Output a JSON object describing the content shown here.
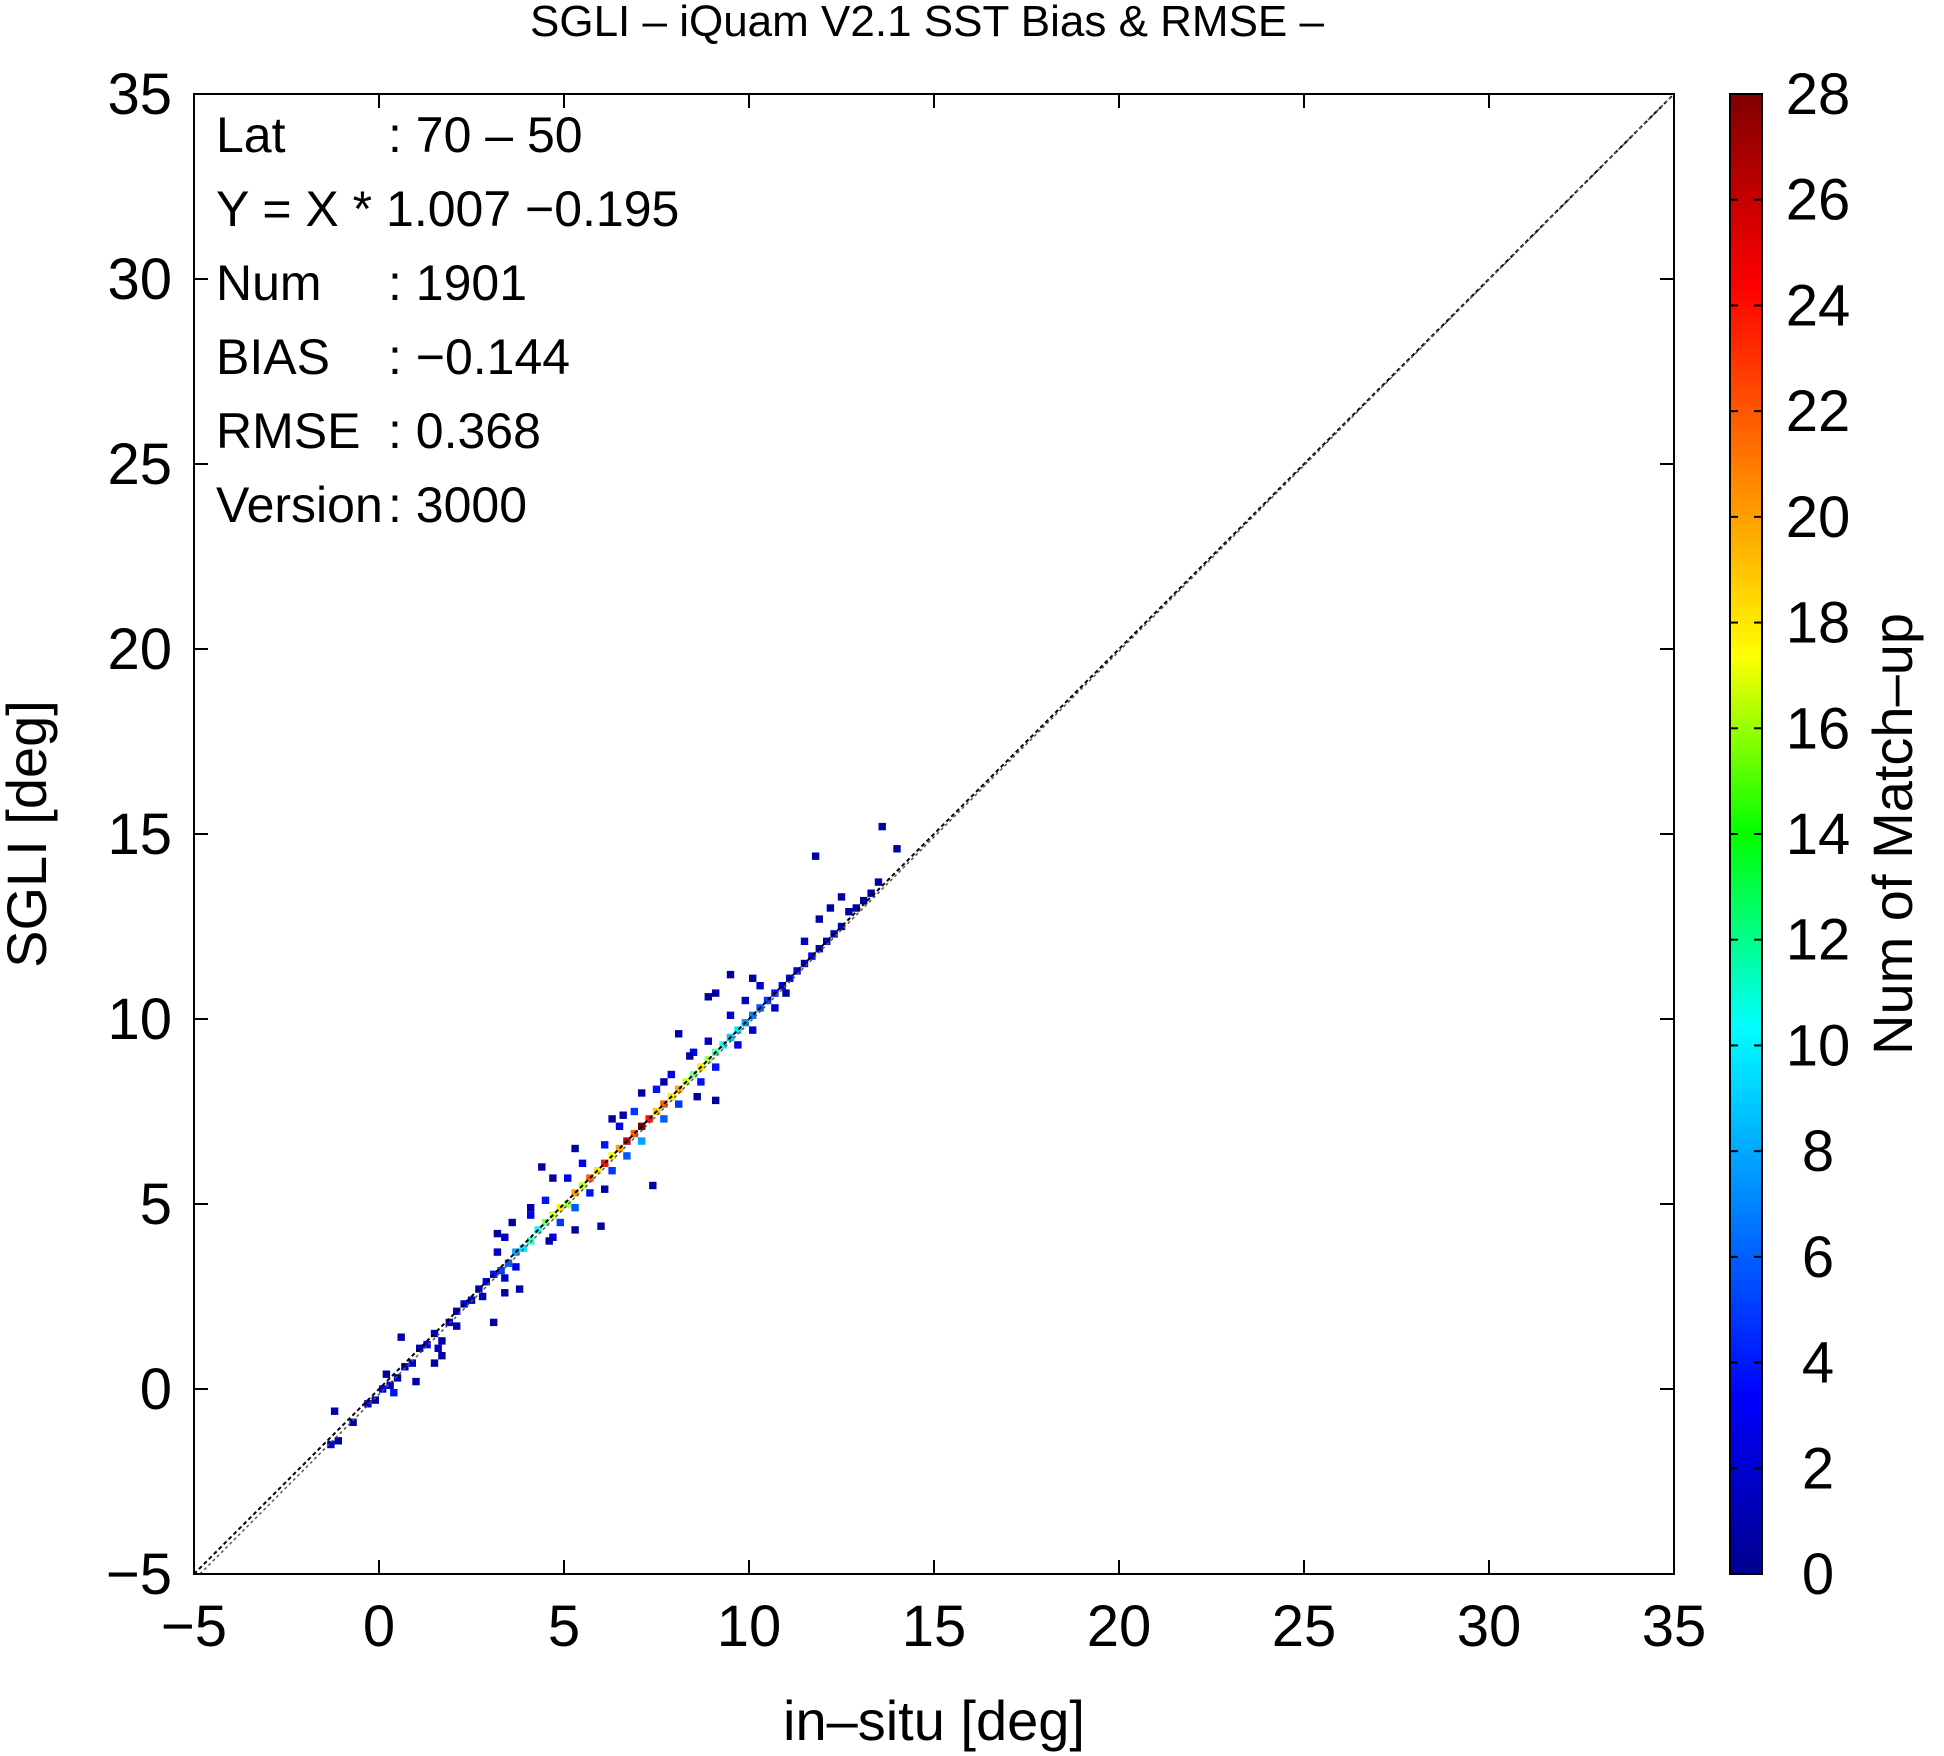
{
  "chart_data": {
    "type": "heatmap",
    "title": "SGLI – iQuam V2.1 SST Bias & RMSE  –",
    "xlabel": "in–situ [deg]",
    "ylabel": "SGLI [deg]",
    "xlim": [
      -5,
      35
    ],
    "ylim": [
      -5,
      35
    ],
    "x_ticks": [
      "−5",
      "0",
      "5",
      "10",
      "15",
      "20",
      "25",
      "30",
      "35"
    ],
    "y_ticks": [
      "−5",
      "0",
      "5",
      "10",
      "15",
      "20",
      "25",
      "30",
      "35"
    ],
    "grid": false,
    "colorbar": {
      "label": "Num of Match–up",
      "range": [
        0,
        28
      ],
      "ticks": [
        "0",
        "2",
        "4",
        "6",
        "8",
        "10",
        "12",
        "14",
        "16",
        "18",
        "20",
        "22",
        "24",
        "26",
        "28"
      ],
      "colormap": "jet"
    },
    "reference_line": {
      "type": "1:1",
      "style": "dashed"
    },
    "stats": [
      {
        "label": "Lat",
        "value": ": 70 – 50"
      },
      {
        "label": "Y = X * 1.007 −0.195",
        "value": ""
      },
      {
        "label": "Num",
        "value": ": 1901"
      },
      {
        "label": "BIAS",
        "value": ": −0.144"
      },
      {
        "label": "RMSE",
        "value": ": 0.368"
      },
      {
        "label": "Version",
        "value": ": 3000"
      }
    ],
    "bins": [
      [
        -1.4,
        -1.6,
        2
      ],
      [
        -1.2,
        -1.5,
        1
      ],
      [
        -1.3,
        -0.7,
        1
      ],
      [
        -0.8,
        -1.0,
        1
      ],
      [
        -0.4,
        -0.5,
        2
      ],
      [
        -0.2,
        -0.4,
        1
      ],
      [
        0.0,
        -0.1,
        3
      ],
      [
        0.2,
        0.0,
        2
      ],
      [
        0.4,
        0.2,
        1
      ],
      [
        0.1,
        0.3,
        1
      ],
      [
        0.3,
        -0.2,
        4
      ],
      [
        0.6,
        0.5,
        2
      ],
      [
        0.8,
        0.6,
        2
      ],
      [
        0.9,
        0.1,
        1
      ],
      [
        1.0,
        1.0,
        2
      ],
      [
        1.2,
        1.1,
        3
      ],
      [
        1.4,
        1.4,
        2
      ],
      [
        1.5,
        1.0,
        2
      ],
      [
        1.6,
        1.2,
        1
      ],
      [
        1.8,
        1.7,
        2
      ],
      [
        2.0,
        2.0,
        2
      ],
      [
        2.2,
        2.2,
        3
      ],
      [
        2.0,
        1.6,
        1
      ],
      [
        2.4,
        2.3,
        2
      ],
      [
        2.6,
        2.6,
        2
      ],
      [
        2.8,
        2.8,
        3
      ],
      [
        2.7,
        2.4,
        2
      ],
      [
        3.0,
        3.0,
        4
      ],
      [
        3.2,
        3.1,
        5
      ],
      [
        3.4,
        3.3,
        6
      ],
      [
        3.3,
        2.9,
        2
      ],
      [
        3.6,
        3.6,
        8
      ],
      [
        3.8,
        3.7,
        10
      ],
      [
        3.6,
        3.2,
        3
      ],
      [
        3.1,
        3.6,
        2
      ],
      [
        3.3,
        4.0,
        2
      ],
      [
        3.5,
        4.4,
        1
      ],
      [
        4.0,
        3.9,
        12
      ],
      [
        4.2,
        4.2,
        11
      ],
      [
        4.4,
        4.4,
        14
      ],
      [
        4.0,
        4.6,
        3
      ],
      [
        4.6,
        4.0,
        3
      ],
      [
        4.6,
        4.6,
        16
      ],
      [
        4.8,
        4.8,
        18
      ],
      [
        5.0,
        4.9,
        15
      ],
      [
        4.8,
        4.4,
        5
      ],
      [
        4.4,
        5.0,
        4
      ],
      [
        5.2,
        5.2,
        20
      ],
      [
        5.4,
        5.4,
        16
      ],
      [
        5.2,
        4.8,
        6
      ],
      [
        5.0,
        5.6,
        3
      ],
      [
        5.6,
        5.6,
        22
      ],
      [
        5.8,
        5.8,
        18
      ],
      [
        5.6,
        5.2,
        4
      ],
      [
        5.4,
        6.0,
        3
      ],
      [
        5.9,
        4.3,
        1
      ],
      [
        6.0,
        6.0,
        24
      ],
      [
        6.2,
        6.2,
        17
      ],
      [
        6.4,
        6.4,
        20
      ],
      [
        6.2,
        5.8,
        5
      ],
      [
        6.0,
        6.5,
        4
      ],
      [
        6.6,
        6.6,
        26
      ],
      [
        6.8,
        6.8,
        22
      ],
      [
        6.6,
        6.2,
        6
      ],
      [
        6.4,
        7.0,
        3
      ],
      [
        7.0,
        7.0,
        28
      ],
      [
        7.2,
        7.2,
        24
      ],
      [
        7.4,
        7.4,
        19
      ],
      [
        7.0,
        6.6,
        8
      ],
      [
        6.8,
        7.4,
        5
      ],
      [
        7.6,
        7.6,
        22
      ],
      [
        7.8,
        7.8,
        18
      ],
      [
        7.6,
        7.2,
        6
      ],
      [
        7.4,
        8.0,
        4
      ],
      [
        8.0,
        8.0,
        20
      ],
      [
        8.2,
        8.2,
        16
      ],
      [
        8.4,
        8.4,
        14
      ],
      [
        8.0,
        7.6,
        5
      ],
      [
        7.8,
        8.4,
        3
      ],
      [
        8.6,
        8.6,
        18
      ],
      [
        8.8,
        8.8,
        15
      ],
      [
        8.6,
        8.2,
        4
      ],
      [
        8.4,
        9.0,
        3
      ],
      [
        9.0,
        9.0,
        13
      ],
      [
        9.2,
        9.2,
        11
      ],
      [
        9.4,
        9.4,
        9
      ],
      [
        9.0,
        8.6,
        4
      ],
      [
        8.8,
        9.3,
        2
      ],
      [
        9.6,
        9.6,
        10
      ],
      [
        9.8,
        9.8,
        8
      ],
      [
        9.6,
        9.2,
        3
      ],
      [
        9.4,
        10.0,
        2
      ],
      [
        10.0,
        10.0,
        7
      ],
      [
        10.2,
        10.2,
        6
      ],
      [
        10.4,
        10.4,
        5
      ],
      [
        10.0,
        9.6,
        2
      ],
      [
        9.8,
        10.4,
        2
      ],
      [
        10.6,
        10.6,
        4
      ],
      [
        10.8,
        10.8,
        3
      ],
      [
        11.0,
        11.0,
        3
      ],
      [
        10.6,
        10.2,
        2
      ],
      [
        11.2,
        11.2,
        3
      ],
      [
        11.4,
        11.4,
        2
      ],
      [
        11.6,
        11.6,
        3
      ],
      [
        11.8,
        11.8,
        2
      ],
      [
        11.4,
        12.0,
        2
      ],
      [
        12.0,
        12.0,
        2
      ],
      [
        12.2,
        12.2,
        2
      ],
      [
        12.4,
        12.4,
        2
      ],
      [
        12.6,
        12.8,
        1
      ],
      [
        12.8,
        12.9,
        1
      ],
      [
        13.0,
        13.1,
        1
      ],
      [
        13.2,
        13.3,
        1
      ],
      [
        13.4,
        13.6,
        1
      ],
      [
        11.8,
        12.6,
        1
      ],
      [
        12.1,
        12.9,
        1
      ],
      [
        13.9,
        14.5,
        1
      ],
      [
        11.7,
        14.3,
        1
      ],
      [
        12.4,
        13.2,
        1
      ],
      [
        8.8,
        10.5,
        1
      ],
      [
        9.0,
        10.6,
        1
      ],
      [
        10.0,
        11.0,
        1
      ],
      [
        9.4,
        11.1,
        1
      ],
      [
        10.9,
        10.6,
        1
      ],
      [
        8.0,
        9.5,
        1
      ],
      [
        8.3,
        8.9,
        1
      ],
      [
        7.0,
        7.9,
        1
      ],
      [
        7.6,
        8.2,
        1
      ],
      [
        9.0,
        7.7,
        1
      ],
      [
        8.5,
        7.8,
        1
      ],
      [
        6.2,
        7.2,
        1
      ],
      [
        6.5,
        7.3,
        1
      ],
      [
        7.3,
        5.4,
        1
      ],
      [
        6.0,
        5.3,
        1
      ],
      [
        5.2,
        6.4,
        1
      ],
      [
        4.3,
        5.9,
        1
      ],
      [
        4.6,
        5.6,
        1
      ],
      [
        3.1,
        4.1,
        1
      ],
      [
        4.0,
        4.8,
        1
      ],
      [
        4.5,
        3.9,
        1
      ],
      [
        5.2,
        4.2,
        1
      ],
      [
        3.3,
        2.5,
        1
      ],
      [
        3.7,
        2.6,
        1
      ],
      [
        3.0,
        1.7,
        1
      ],
      [
        1.4,
        0.6,
        1
      ],
      [
        1.6,
        0.8,
        1
      ],
      [
        0.5,
        1.3,
        1
      ],
      [
        10.2,
        10.8,
        2
      ],
      [
        13.5,
        15.1,
        1
      ]
    ]
  }
}
